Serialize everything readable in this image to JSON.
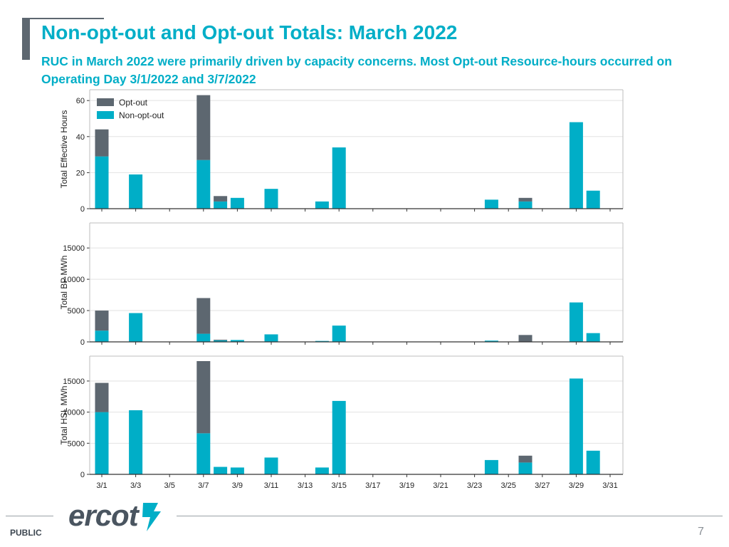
{
  "header": {
    "title": "Non-opt-out and Opt-out Totals: March 2022",
    "subtitle": "RUC in March 2022 were primarily driven by capacity concerns. Most Opt-out Resource-hours occurred on Operating Day 3/1/2022 and 3/7/2022"
  },
  "footer": {
    "label": "PUBLIC",
    "page_number": "7",
    "logo_text": "ercot"
  },
  "colors": {
    "opt_out": "#5d6770",
    "non_opt_out": "#00aec7",
    "accent": "#00aec7"
  },
  "chart_data": {
    "type": "bar",
    "stacked": true,
    "x": [
      "3/1",
      "3/2",
      "3/3",
      "3/4",
      "3/5",
      "3/6",
      "3/7",
      "3/8",
      "3/9",
      "3/10",
      "3/11",
      "3/12",
      "3/13",
      "3/14",
      "3/15",
      "3/16",
      "3/17",
      "3/18",
      "3/19",
      "3/20",
      "3/21",
      "3/22",
      "3/23",
      "3/24",
      "3/25",
      "3/26",
      "3/27",
      "3/28",
      "3/29",
      "3/30",
      "3/31"
    ],
    "xticks": [
      "3/1",
      "3/3",
      "3/5",
      "3/7",
      "3/9",
      "3/11",
      "3/13",
      "3/15",
      "3/17",
      "3/19",
      "3/21",
      "3/23",
      "3/25",
      "3/27",
      "3/29",
      "3/31"
    ],
    "legend": {
      "entries": [
        "Opt-out",
        "Non-opt-out"
      ],
      "placement": "top-left"
    },
    "panels": [
      {
        "ylabel": "Total Effective Hours",
        "ylim": [
          0,
          66
        ],
        "yticks": [
          0,
          20,
          40,
          60
        ],
        "series": [
          {
            "name": "Non-opt-out",
            "values": [
              29,
              0,
              19,
              0,
              0,
              0,
              27,
              4,
              6,
              0,
              11,
              0,
              0,
              4,
              34,
              0,
              0,
              0,
              0,
              0,
              0,
              0,
              0,
              5,
              0,
              4,
              0,
              0,
              48,
              10,
              0
            ]
          },
          {
            "name": "Opt-out",
            "values": [
              15,
              0,
              0,
              0,
              0,
              0,
              36,
              3,
              0,
              0,
              0,
              0,
              0,
              0,
              0,
              0,
              0,
              0,
              0,
              0,
              0,
              0,
              0,
              0,
              0,
              2,
              0,
              0,
              0,
              0,
              0
            ]
          }
        ]
      },
      {
        "ylabel": "Total BP MWh",
        "ylim": [
          0,
          19000
        ],
        "yticks": [
          0,
          5000,
          10000,
          15000
        ],
        "series": [
          {
            "name": "Non-opt-out",
            "values": [
              1800,
              0,
              4600,
              0,
              0,
              0,
              1300,
              250,
              300,
              0,
              1200,
              0,
              0,
              150,
              2600,
              0,
              0,
              0,
              0,
              0,
              0,
              0,
              0,
              200,
              0,
              50,
              0,
              0,
              6300,
              1400,
              0
            ]
          },
          {
            "name": "Opt-out",
            "values": [
              3200,
              0,
              0,
              0,
              0,
              0,
              5700,
              100,
              0,
              0,
              0,
              0,
              0,
              0,
              0,
              0,
              0,
              0,
              0,
              0,
              0,
              0,
              0,
              0,
              0,
              1050,
              0,
              0,
              0,
              0,
              0
            ]
          }
        ]
      },
      {
        "ylabel": "Total HSL MWh",
        "ylim": [
          0,
          19000
        ],
        "yticks": [
          0,
          5000,
          10000,
          15000
        ],
        "series": [
          {
            "name": "Non-opt-out",
            "values": [
              10000,
              0,
              10300,
              0,
              0,
              0,
              6600,
              1200,
              1100,
              0,
              2700,
              0,
              0,
              1100,
              11800,
              0,
              0,
              0,
              0,
              0,
              0,
              0,
              0,
              2300,
              0,
              1900,
              0,
              0,
              15400,
              3800,
              0
            ]
          },
          {
            "name": "Opt-out",
            "values": [
              4700,
              0,
              0,
              0,
              0,
              0,
              11600,
              0,
              0,
              0,
              0,
              0,
              0,
              0,
              0,
              0,
              0,
              0,
              0,
              0,
              0,
              0,
              0,
              0,
              0,
              1100,
              0,
              0,
              0,
              0,
              0
            ]
          }
        ]
      }
    ]
  }
}
